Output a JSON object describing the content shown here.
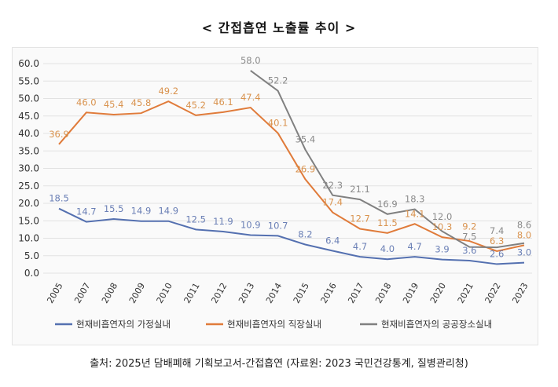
{
  "title": "< 간접흡연 노출률 추이 >",
  "footer": "출처: 2025년 담배폐해 기획보고서-간접흡연 (자료원: 2023 국민건강통계, 질병관리청)",
  "chart_data": {
    "type": "line",
    "title": "< 간접흡연 노출률 추이 >",
    "categories": [
      "2005",
      "2007",
      "2008",
      "2009",
      "2010",
      "2011",
      "2012",
      "2013",
      "2014",
      "2015",
      "2016",
      "2017",
      "2018",
      "2019",
      "2020",
      "2021",
      "2022",
      "2023"
    ],
    "yticks": [
      "60.0",
      "55.0",
      "50.0",
      "45.0",
      "40.0",
      "35.0",
      "30.0",
      "25.0",
      "20.0",
      "15.0",
      "10.0",
      "5.0",
      "0.0"
    ],
    "ylim": [
      0,
      60
    ],
    "grid": true,
    "legend": "bottom",
    "series": [
      {
        "name": "현재비흡연자의 가정실내",
        "color": "#5470b0",
        "label_color": "#6a7fb5",
        "values": [
          18.5,
          14.7,
          15.5,
          14.9,
          14.9,
          12.5,
          11.9,
          10.9,
          10.7,
          8.2,
          6.4,
          4.7,
          4.0,
          4.7,
          3.9,
          3.6,
          2.6,
          3.0
        ]
      },
      {
        "name": "현재비흡연자의 직장실내",
        "color": "#e07b3a",
        "label_color": "#d9934f",
        "values": [
          36.9,
          46.0,
          45.4,
          45.8,
          49.2,
          45.2,
          46.1,
          47.4,
          40.1,
          26.9,
          17.4,
          12.7,
          11.5,
          14.1,
          10.3,
          9.2,
          6.3,
          8.0
        ]
      },
      {
        "name": "현재비흡연자의 공공장소실내",
        "color": "#808080",
        "label_color": "#8a8a8a",
        "values": [
          null,
          null,
          null,
          null,
          null,
          null,
          null,
          58.0,
          52.2,
          35.4,
          22.3,
          21.1,
          16.9,
          18.3,
          12.0,
          7.5,
          7.4,
          8.6
        ]
      }
    ]
  }
}
